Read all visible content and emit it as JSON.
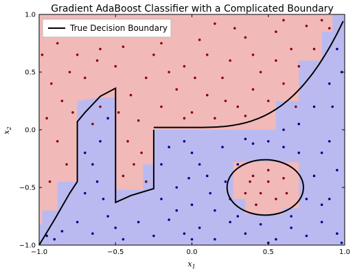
{
  "chart_data": {
    "type": "scatter",
    "title": "Gradient AdaBoost Classifier with a Complicated Boundary",
    "xlabel": "x",
    "xlabel_sub": "1",
    "ylabel": "x",
    "ylabel_sub": "2",
    "xlim": [
      -1.0,
      1.0
    ],
    "ylim": [
      -1.0,
      1.0
    ],
    "xticks": [
      "−1.0",
      "−0.5",
      "0.0",
      "0.5",
      "1.0"
    ],
    "yticks": [
      "−1.0",
      "−0.5",
      "0.0",
      "0.5",
      "1.0"
    ],
    "xtick_values": [
      -1.0,
      -0.5,
      0.0,
      0.5,
      1.0
    ],
    "ytick_values": [
      -1.0,
      -0.5,
      0.0,
      0.5,
      1.0
    ],
    "grid": false,
    "legend": {
      "placement": "top-left",
      "entries": [
        {
          "label": "True Decision Boundary",
          "color": "#000000"
        }
      ]
    },
    "colors": {
      "class_red_region": "#f2b9b9",
      "class_blue_region": "#babaf0",
      "class_red_point": "#8b0000",
      "class_blue_point": "#00008b",
      "boundary": "#000000"
    },
    "boundary_description": "Cubic boundary y ≈ 0.84x³ with step segments at x=-0.75, -0.5, -0.25 and a circle centred (0.5,-0.5) radius 0.25 (red inside)",
    "boundary_curve": {
      "upper": [
        [
          -0.25,
          0.0
        ],
        [
          0.0,
          0.02
        ],
        [
          0.3,
          0.04
        ],
        [
          0.5,
          0.1
        ],
        [
          0.7,
          0.3
        ],
        [
          0.85,
          0.6
        ],
        [
          1.0,
          1.0
        ]
      ],
      "left_arc": [
        [
          -1.0,
          -1.0
        ],
        [
          -0.9,
          -0.78
        ],
        [
          -0.8,
          -0.55
        ],
        [
          -0.75,
          -0.45
        ]
      ],
      "step_a": [
        [
          -0.75,
          -0.45
        ],
        [
          -0.75,
          0.07
        ],
        [
          -0.7,
          0.15
        ],
        [
          -0.6,
          0.29
        ],
        [
          -0.5,
          0.36
        ],
        [
          -0.5,
          -0.63
        ],
        [
          -0.4,
          -0.57
        ],
        [
          -0.25,
          -0.51
        ],
        [
          -0.25,
          0.0
        ]
      ]
    },
    "circle": {
      "cx": 0.48,
      "cy": -0.5,
      "r": 0.25,
      "ry": 0.24
    },
    "red_points": [
      [
        -0.95,
        0.9
      ],
      [
        -0.88,
        0.75
      ],
      [
        -0.8,
        0.95
      ],
      [
        -0.7,
        0.82
      ],
      [
        -0.62,
        0.6
      ],
      [
        -0.55,
        0.88
      ],
      [
        -0.45,
        0.72
      ],
      [
        -0.35,
        0.9
      ],
      [
        -0.25,
        0.65
      ],
      [
        -0.15,
        0.85
      ],
      [
        -0.05,
        0.55
      ],
      [
        0.05,
        0.78
      ],
      [
        0.15,
        0.92
      ],
      [
        0.25,
        0.6
      ],
      [
        0.35,
        0.8
      ],
      [
        0.45,
        0.5
      ],
      [
        0.55,
        0.85
      ],
      [
        0.65,
        0.7
      ],
      [
        0.75,
        0.9
      ],
      [
        0.85,
        0.95
      ],
      [
        -0.92,
        0.4
      ],
      [
        -0.85,
        0.25
      ],
      [
        -0.95,
        0.1
      ],
      [
        -0.88,
        -0.1
      ],
      [
        -0.82,
        -0.3
      ],
      [
        -0.93,
        -0.45
      ],
      [
        -0.8,
        0.5
      ],
      [
        -0.7,
        0.45
      ],
      [
        -0.6,
        0.2
      ],
      [
        -0.65,
        0.05
      ],
      [
        -0.4,
        0.3
      ],
      [
        -0.3,
        0.45
      ],
      [
        -0.2,
        0.2
      ],
      [
        -0.1,
        0.35
      ],
      [
        0.0,
        0.15
      ],
      [
        0.1,
        0.3
      ],
      [
        0.2,
        0.45
      ],
      [
        0.3,
        0.2
      ],
      [
        0.4,
        0.35
      ],
      [
        0.5,
        0.25
      ],
      [
        0.6,
        0.4
      ],
      [
        0.7,
        0.55
      ],
      [
        0.8,
        0.7
      ],
      [
        0.55,
        0.6
      ],
      [
        0.35,
        0.12
      ],
      [
        0.15,
        0.1
      ],
      [
        -0.05,
        0.1
      ],
      [
        -0.35,
        0.08
      ],
      [
        -0.42,
        -0.1
      ],
      [
        -0.38,
        -0.3
      ],
      [
        -0.3,
        -0.45
      ],
      [
        -0.45,
        -0.4
      ],
      [
        -0.33,
        -0.2
      ],
      [
        -0.6,
        0.7
      ],
      [
        -0.5,
        0.55
      ],
      [
        -0.2,
        0.75
      ],
      [
        0.1,
        0.65
      ],
      [
        0.4,
        0.65
      ],
      [
        0.6,
        0.95
      ],
      [
        -0.75,
        0.65
      ],
      [
        0.4,
        -0.4
      ],
      [
        0.45,
        -0.55
      ],
      [
        0.5,
        -0.45
      ],
      [
        0.55,
        -0.6
      ],
      [
        0.6,
        -0.42
      ],
      [
        0.35,
        -0.55
      ],
      [
        0.42,
        -0.65
      ],
      [
        0.5,
        -0.35
      ],
      [
        0.62,
        -0.55
      ],
      [
        0.38,
        -0.45
      ],
      [
        -0.98,
        0.65
      ],
      [
        -0.78,
        0.15
      ],
      [
        0.02,
        0.45
      ],
      [
        0.28,
        0.88
      ],
      [
        0.68,
        0.2
      ],
      [
        -0.15,
        0.5
      ],
      [
        0.22,
        0.25
      ],
      [
        -0.48,
        0.15
      ],
      [
        0.9,
        0.88
      ],
      [
        -0.58,
        0.95
      ]
    ],
    "blue_points": [
      [
        -0.95,
        -0.92
      ],
      [
        -0.85,
        -0.88
      ],
      [
        -0.75,
        -0.8
      ],
      [
        -0.65,
        -0.9
      ],
      [
        -0.55,
        -0.75
      ],
      [
        -0.45,
        -0.95
      ],
      [
        -0.35,
        -0.8
      ],
      [
        -0.25,
        -0.92
      ],
      [
        -0.15,
        -0.78
      ],
      [
        -0.05,
        -0.9
      ],
      [
        0.05,
        -0.85
      ],
      [
        0.15,
        -0.95
      ],
      [
        0.25,
        -0.8
      ],
      [
        0.35,
        -0.9
      ],
      [
        0.45,
        -0.82
      ],
      [
        0.55,
        -0.95
      ],
      [
        0.65,
        -0.85
      ],
      [
        0.75,
        -0.92
      ],
      [
        0.85,
        -0.8
      ],
      [
        0.95,
        -0.9
      ],
      [
        -0.7,
        -0.55
      ],
      [
        -0.65,
        -0.3
      ],
      [
        -0.6,
        -0.1
      ],
      [
        -0.55,
        0.1
      ],
      [
        -0.7,
        -0.2
      ],
      [
        -0.62,
        -0.45
      ],
      [
        -0.2,
        -0.3
      ],
      [
        -0.1,
        -0.5
      ],
      [
        0.0,
        -0.2
      ],
      [
        0.1,
        -0.4
      ],
      [
        0.2,
        -0.15
      ],
      [
        0.25,
        -0.6
      ],
      [
        0.0,
        -0.65
      ],
      [
        -0.15,
        -0.15
      ],
      [
        0.15,
        -0.7
      ],
      [
        0.3,
        -0.3
      ],
      [
        0.7,
        -0.2
      ],
      [
        0.8,
        -0.4
      ],
      [
        0.9,
        -0.1
      ],
      [
        0.75,
        -0.6
      ],
      [
        0.85,
        -0.65
      ],
      [
        0.95,
        -0.35
      ],
      [
        0.7,
        0.05
      ],
      [
        0.8,
        0.2
      ],
      [
        0.9,
        0.4
      ],
      [
        0.95,
        0.7
      ],
      [
        0.6,
        0.0
      ],
      [
        0.5,
        -0.1
      ],
      [
        0.4,
        -0.12
      ],
      [
        0.85,
        -0.2
      ],
      [
        -0.05,
        -0.1
      ],
      [
        0.05,
        -0.3
      ],
      [
        -0.1,
        -0.7
      ],
      [
        0.3,
        -0.75
      ],
      [
        0.65,
        -0.75
      ],
      [
        0.9,
        -0.6
      ],
      [
        -0.2,
        -0.6
      ],
      [
        0.12,
        -0.55
      ],
      [
        0.6,
        -0.15
      ],
      [
        0.35,
        -0.08
      ],
      [
        -0.9,
        -0.95
      ],
      [
        -0.5,
        -0.85
      ],
      [
        0.0,
        -0.95
      ],
      [
        0.5,
        -0.98
      ],
      [
        0.98,
        -0.98
      ],
      [
        0.92,
        0.2
      ],
      [
        0.98,
        0.5
      ],
      [
        -0.58,
        -0.6
      ],
      [
        0.22,
        -0.45
      ],
      [
        -0.02,
        -0.42
      ]
    ]
  }
}
